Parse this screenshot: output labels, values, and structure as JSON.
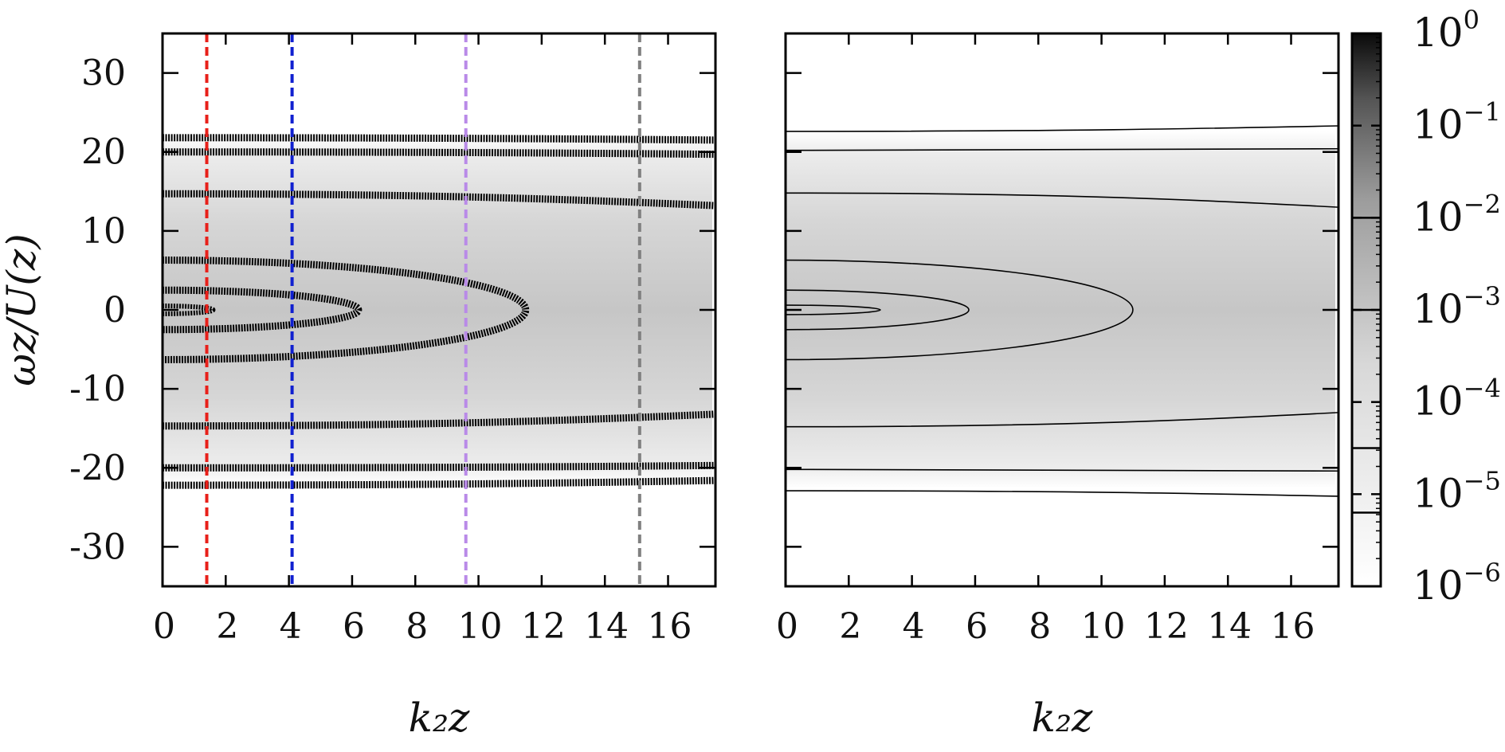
{
  "chart_data": [
    {
      "type": "heatmap",
      "panel": "left",
      "xlabel": "k₂z",
      "ylabel": "ωz/U(z)",
      "xlim": [
        0,
        17.5
      ],
      "ylim": [
        -35,
        35
      ],
      "xticks": [
        0,
        2,
        4,
        6,
        8,
        10,
        12,
        14,
        16
      ],
      "yticks": [
        30,
        20,
        10,
        0,
        -10,
        -20,
        -30
      ],
      "ytick_labels": [
        "30",
        "20",
        "10",
        "0",
        "-10",
        "-20",
        "-30"
      ],
      "colormap": "grayscale (white = low, black = high), log scale",
      "contour_style": "thick noisy black bands",
      "contours_ellipses": [
        {
          "x_extent": 1.6,
          "y_halfheight": 0.5
        },
        {
          "x_extent": 6.2,
          "y_halfheight": 2.5
        },
        {
          "x_extent": 11.5,
          "y_halfheight": 6.3
        }
      ],
      "contours_horizontal": [
        {
          "y_left": 14.7,
          "y_right": 13.2
        },
        {
          "y_left": -14.7,
          "y_right": -13.2
        },
        {
          "y_left": 20.0,
          "y_right": 19.7
        },
        {
          "y_left": -20.0,
          "y_right": -19.7
        },
        {
          "y_left": 21.8,
          "y_right": 21.5
        },
        {
          "y_left": -22.2,
          "y_right": -21.6
        }
      ],
      "band_half_height": 22.2,
      "vertical_lines": [
        {
          "x": 1.4,
          "color": "#e8201a"
        },
        {
          "x": 4.1,
          "color": "#1020d0"
        },
        {
          "x": 9.6,
          "color": "#b98ae8"
        },
        {
          "x": 15.1,
          "color": "#808080"
        }
      ]
    },
    {
      "type": "heatmap",
      "panel": "right",
      "xlabel": "k₂z",
      "ylabel": "",
      "xlim": [
        0,
        17.5
      ],
      "ylim": [
        -35,
        35
      ],
      "xticks": [
        0,
        2,
        4,
        6,
        8,
        10,
        12,
        14,
        16
      ],
      "colormap": "grayscale (white = low, black = high), log scale",
      "contour_style": "thin smooth black lines",
      "contours_ellipses": [
        {
          "x_extent": 3.0,
          "y_halfheight": 0.6
        },
        {
          "x_extent": 5.8,
          "y_halfheight": 2.5
        },
        {
          "x_extent": 11.0,
          "y_halfheight": 6.3
        }
      ],
      "contours_horizontal": [
        {
          "y_left": 14.8,
          "y_right": 13.0
        },
        {
          "y_left": -14.8,
          "y_right": -13.0
        },
        {
          "y_left": 20.2,
          "y_right": 20.4
        },
        {
          "y_left": -20.2,
          "y_right": -20.4
        },
        {
          "y_left": 22.6,
          "y_right": 23.3
        },
        {
          "y_left": -22.9,
          "y_right": -23.6
        }
      ],
      "band_half_height": 22.6
    }
  ],
  "colorbar": {
    "scale": "log",
    "range": [
      1e-06,
      1
    ],
    "labels": [
      {
        "base": "10",
        "exp": "0"
      },
      {
        "base": "10",
        "exp": "−1"
      },
      {
        "base": "10",
        "exp": "−2"
      },
      {
        "base": "10",
        "exp": "−3"
      },
      {
        "base": "10",
        "exp": "−4"
      },
      {
        "base": "10",
        "exp": "−5"
      },
      {
        "base": "10",
        "exp": "−6"
      }
    ],
    "contour_levels_exp": [
      -2,
      -3,
      -4.5,
      -5.2
    ]
  },
  "colors": {
    "frame": "#000000",
    "background": "#ffffff"
  }
}
